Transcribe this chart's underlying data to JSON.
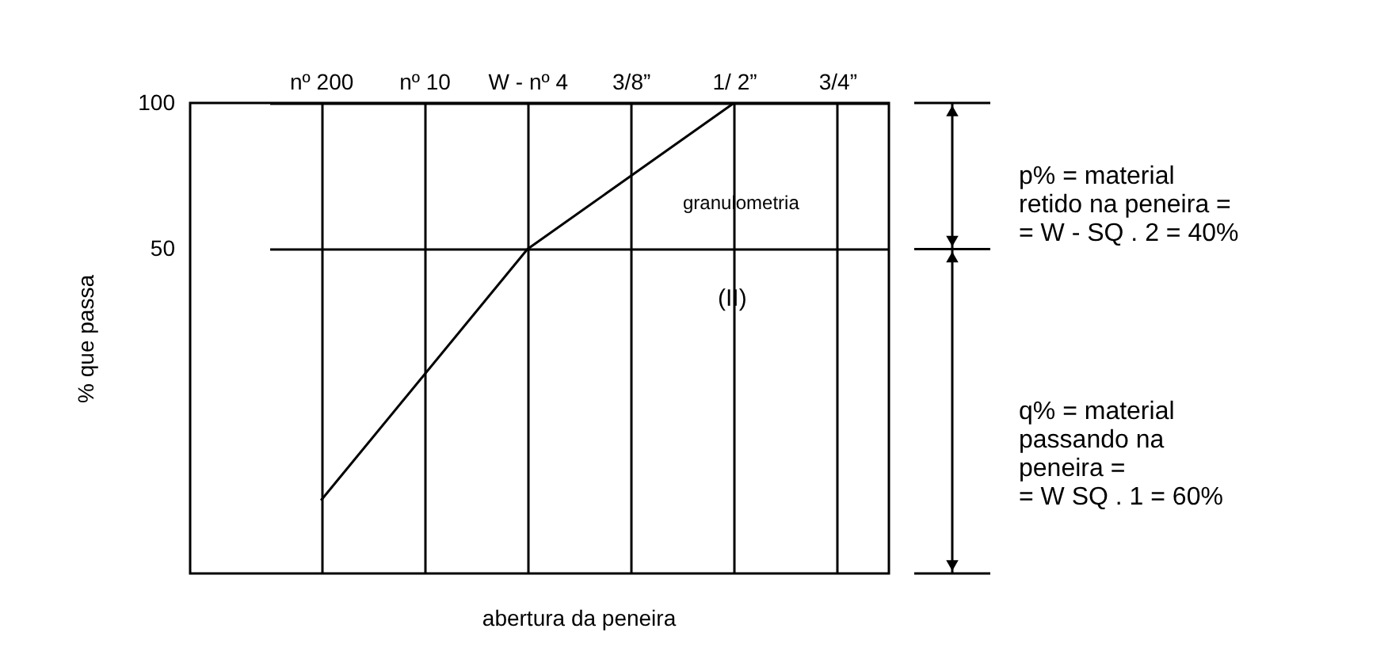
{
  "chart_data": {
    "type": "line",
    "categories": [
      "nº 200",
      "nº 10",
      "W - nº 4",
      "3/8”",
      "1/ 2”",
      "3/4”"
    ],
    "series": [
      {
        "color": "#000000",
        "x": [
          "nº 200",
          "W - nº 4",
          "1/ 2”"
        ],
        "values": [
          -36,
          50,
          100
        ]
      }
    ],
    "xlabel": "abertura da peneira",
    "ylabel": "% que passa",
    "ylim": [
      -61,
      100
    ],
    "yticks": [
      50,
      100
    ],
    "grid": true,
    "line_style": "solid",
    "annotations": [
      "granulometria",
      "(II)",
      "p% = material\nretido na peneira =\n= W - SQ . 2 = 40%",
      "q% = material\npassando na\npeneira =\n= W SQ . 1 = 60%"
    ]
  }
}
